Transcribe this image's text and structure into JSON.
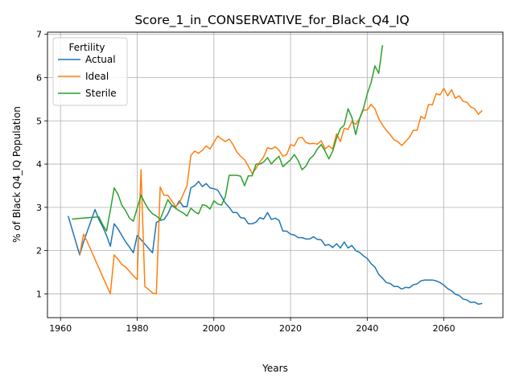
{
  "chart_data": {
    "type": "line",
    "title": "Score_1_in_CONSERVATIVE_for_Black_Q4_IQ",
    "xlabel": "Years",
    "ylabel": "% of Black Q4_IQ Population",
    "xlim": [
      1956.6,
      2075.4
    ],
    "ylim": [
      0.45,
      7.05
    ],
    "xticks": [
      1960,
      1980,
      2000,
      2020,
      2040,
      2060
    ],
    "yticks": [
      1,
      2,
      3,
      4,
      5,
      6,
      7
    ],
    "grid": true,
    "legend": {
      "title": "Fertility",
      "placement": "top-left"
    },
    "series": [
      {
        "name": "Actual",
        "color": "#1f77b4",
        "points": [
          [
            1962,
            2.8
          ],
          [
            1963,
            2.5
          ],
          [
            1964,
            2.2
          ],
          [
            1965,
            1.9
          ],
          [
            1966,
            2.2
          ],
          [
            1967,
            2.45
          ],
          [
            1968,
            2.7
          ],
          [
            1969,
            2.95
          ],
          [
            1970,
            2.72
          ],
          [
            1971,
            2.55
          ],
          [
            1972,
            2.35
          ],
          [
            1973,
            2.1
          ],
          [
            1974,
            2.62
          ],
          [
            1975,
            2.5
          ],
          [
            1976,
            2.35
          ],
          [
            1977,
            2.2
          ],
          [
            1978,
            2.08
          ],
          [
            1979,
            1.95
          ],
          [
            1980,
            2.35
          ],
          [
            1981,
            2.25
          ],
          [
            1982,
            2.15
          ],
          [
            1983,
            2.05
          ],
          [
            1984,
            1.95
          ],
          [
            1985,
            2.65
          ],
          [
            1986,
            2.7
          ],
          [
            1987,
            2.72
          ],
          [
            1988,
            2.85
          ],
          [
            1989,
            3.05
          ],
          [
            1990,
            3.0
          ],
          [
            1991,
            3.15
          ],
          [
            1992,
            3.02
          ],
          [
            1993,
            3.02
          ],
          [
            1994,
            3.45
          ],
          [
            1995,
            3.5
          ],
          [
            1996,
            3.6
          ],
          [
            1997,
            3.48
          ],
          [
            1998,
            3.55
          ],
          [
            1999,
            3.45
          ],
          [
            2000,
            3.43
          ],
          [
            2001,
            3.4
          ],
          [
            2002,
            3.25
          ],
          [
            2003,
            3.1
          ],
          [
            2004,
            3.0
          ],
          [
            2005,
            2.88
          ],
          [
            2006,
            2.88
          ],
          [
            2007,
            2.76
          ],
          [
            2008,
            2.75
          ],
          [
            2009,
            2.62
          ],
          [
            2010,
            2.62
          ],
          [
            2011,
            2.66
          ],
          [
            2012,
            2.76
          ],
          [
            2013,
            2.73
          ],
          [
            2014,
            2.88
          ],
          [
            2015,
            2.72
          ],
          [
            2016,
            2.75
          ],
          [
            2017,
            2.7
          ],
          [
            2018,
            2.45
          ],
          [
            2019,
            2.45
          ],
          [
            2020,
            2.38
          ],
          [
            2021,
            2.36
          ],
          [
            2022,
            2.3
          ],
          [
            2023,
            2.3
          ],
          [
            2024,
            2.27
          ],
          [
            2025,
            2.27
          ],
          [
            2026,
            2.32
          ],
          [
            2027,
            2.26
          ],
          [
            2028,
            2.25
          ],
          [
            2029,
            2.12
          ],
          [
            2030,
            2.14
          ],
          [
            2031,
            2.07
          ],
          [
            2032,
            2.16
          ],
          [
            2033,
            2.06
          ],
          [
            2034,
            2.2
          ],
          [
            2035,
            2.06
          ],
          [
            2036,
            2.12
          ],
          [
            2037,
            2.0
          ],
          [
            2038,
            1.96
          ],
          [
            2039,
            1.88
          ],
          [
            2040,
            1.82
          ],
          [
            2041,
            1.7
          ],
          [
            2042,
            1.62
          ],
          [
            2043,
            1.45
          ],
          [
            2044,
            1.36
          ],
          [
            2045,
            1.26
          ],
          [
            2046,
            1.24
          ],
          [
            2047,
            1.17
          ],
          [
            2048,
            1.17
          ],
          [
            2049,
            1.11
          ],
          [
            2050,
            1.15
          ],
          [
            2051,
            1.14
          ],
          [
            2052,
            1.21
          ],
          [
            2053,
            1.23
          ],
          [
            2054,
            1.3
          ],
          [
            2055,
            1.32
          ],
          [
            2056,
            1.32
          ],
          [
            2057,
            1.32
          ],
          [
            2058,
            1.3
          ],
          [
            2059,
            1.26
          ],
          [
            2060,
            1.2
          ],
          [
            2061,
            1.12
          ],
          [
            2062,
            1.07
          ],
          [
            2063,
            0.99
          ],
          [
            2064,
            0.96
          ],
          [
            2065,
            0.88
          ],
          [
            2066,
            0.86
          ],
          [
            2067,
            0.8
          ],
          [
            2068,
            0.81
          ],
          [
            2069,
            0.76
          ],
          [
            2070,
            0.78
          ]
        ]
      },
      {
        "name": "Ideal",
        "color": "#ff7f0e",
        "points": [
          [
            1965,
            1.9
          ],
          [
            1966,
            2.38
          ],
          [
            1967,
            2.2
          ],
          [
            1968,
            2.0
          ],
          [
            1969,
            1.8
          ],
          [
            1970,
            1.6
          ],
          [
            1971,
            1.4
          ],
          [
            1972,
            1.2
          ],
          [
            1973,
            1.0
          ],
          [
            1974,
            1.9
          ],
          [
            1975,
            1.8
          ],
          [
            1976,
            1.68
          ],
          [
            1977,
            1.62
          ],
          [
            1978,
            1.52
          ],
          [
            1979,
            1.42
          ],
          [
            1980,
            1.33
          ],
          [
            1981,
            3.87
          ],
          [
            1982,
            1.17
          ],
          [
            1983,
            1.1
          ],
          [
            1984,
            1.02
          ],
          [
            1985,
            1.0
          ],
          [
            1986,
            3.47
          ],
          [
            1987,
            3.28
          ],
          [
            1988,
            3.28
          ],
          [
            1989,
            3.15
          ],
          [
            1990,
            3.02
          ],
          [
            1991,
            3.1
          ],
          [
            1992,
            3.3
          ],
          [
            1993,
            3.5
          ],
          [
            1994,
            4.2
          ],
          [
            1995,
            4.3
          ],
          [
            1996,
            4.25
          ],
          [
            1997,
            4.32
          ],
          [
            1998,
            4.42
          ],
          [
            1999,
            4.35
          ],
          [
            2000,
            4.5
          ],
          [
            2001,
            4.65
          ],
          [
            2002,
            4.58
          ],
          [
            2003,
            4.52
          ],
          [
            2004,
            4.58
          ],
          [
            2005,
            4.45
          ],
          [
            2006,
            4.28
          ],
          [
            2007,
            4.18
          ],
          [
            2008,
            4.1
          ],
          [
            2009,
            3.95
          ],
          [
            2010,
            3.78
          ],
          [
            2011,
            3.9
          ],
          [
            2012,
            4.05
          ],
          [
            2013,
            4.17
          ],
          [
            2014,
            4.38
          ],
          [
            2015,
            4.35
          ],
          [
            2016,
            4.4
          ],
          [
            2017,
            4.32
          ],
          [
            2018,
            4.18
          ],
          [
            2019,
            4.22
          ],
          [
            2020,
            4.45
          ],
          [
            2021,
            4.42
          ],
          [
            2022,
            4.6
          ],
          [
            2023,
            4.62
          ],
          [
            2024,
            4.5
          ],
          [
            2025,
            4.47
          ],
          [
            2026,
            4.48
          ],
          [
            2027,
            4.46
          ],
          [
            2028,
            4.54
          ],
          [
            2029,
            4.35
          ],
          [
            2030,
            4.42
          ],
          [
            2031,
            4.35
          ],
          [
            2032,
            4.7
          ],
          [
            2033,
            4.52
          ],
          [
            2034,
            4.83
          ],
          [
            2035,
            4.8
          ],
          [
            2036,
            4.98
          ],
          [
            2037,
            4.92
          ],
          [
            2038,
            5.05
          ],
          [
            2039,
            5.25
          ],
          [
            2040,
            5.25
          ],
          [
            2041,
            5.38
          ],
          [
            2042,
            5.28
          ],
          [
            2043,
            5.05
          ],
          [
            2044,
            4.9
          ],
          [
            2045,
            4.78
          ],
          [
            2046,
            4.68
          ],
          [
            2047,
            4.56
          ],
          [
            2048,
            4.52
          ],
          [
            2049,
            4.43
          ],
          [
            2050,
            4.52
          ],
          [
            2051,
            4.62
          ],
          [
            2052,
            4.78
          ],
          [
            2053,
            4.78
          ],
          [
            2054,
            5.1
          ],
          [
            2055,
            5.05
          ],
          [
            2056,
            5.38
          ],
          [
            2057,
            5.37
          ],
          [
            2058,
            5.63
          ],
          [
            2059,
            5.6
          ],
          [
            2060,
            5.75
          ],
          [
            2061,
            5.58
          ],
          [
            2062,
            5.72
          ],
          [
            2063,
            5.52
          ],
          [
            2064,
            5.58
          ],
          [
            2065,
            5.45
          ],
          [
            2066,
            5.43
          ],
          [
            2067,
            5.32
          ],
          [
            2068,
            5.28
          ],
          [
            2069,
            5.15
          ],
          [
            2070,
            5.24
          ]
        ]
      },
      {
        "name": "Sterile",
        "color": "#2ca02c",
        "points": [
          [
            1963,
            2.73
          ],
          [
            1970,
            2.78
          ],
          [
            1971,
            2.6
          ],
          [
            1972,
            2.45
          ],
          [
            1973,
            2.93
          ],
          [
            1974,
            3.45
          ],
          [
            1975,
            3.3
          ],
          [
            1976,
            3.05
          ],
          [
            1977,
            2.92
          ],
          [
            1978,
            2.75
          ],
          [
            1979,
            2.68
          ],
          [
            1980,
            2.98
          ],
          [
            1981,
            3.28
          ],
          [
            1982,
            3.1
          ],
          [
            1983,
            2.95
          ],
          [
            1984,
            2.85
          ],
          [
            1985,
            2.8
          ],
          [
            1986,
            2.72
          ],
          [
            1987,
            2.95
          ],
          [
            1988,
            3.18
          ],
          [
            1989,
            3.05
          ],
          [
            1990,
            2.98
          ],
          [
            1991,
            2.92
          ],
          [
            1992,
            2.87
          ],
          [
            1993,
            2.8
          ],
          [
            1994,
            2.98
          ],
          [
            1995,
            2.9
          ],
          [
            1996,
            2.85
          ],
          [
            1997,
            3.06
          ],
          [
            1998,
            3.04
          ],
          [
            1999,
            2.96
          ],
          [
            2000,
            3.15
          ],
          [
            2001,
            3.08
          ],
          [
            2002,
            3.05
          ],
          [
            2003,
            3.25
          ],
          [
            2004,
            3.74
          ],
          [
            2005,
            3.74
          ],
          [
            2006,
            3.74
          ],
          [
            2007,
            3.72
          ],
          [
            2008,
            3.5
          ],
          [
            2009,
            3.73
          ],
          [
            2010,
            3.73
          ],
          [
            2011,
            4.0
          ],
          [
            2012,
            4.0
          ],
          [
            2013,
            4.05
          ],
          [
            2014,
            4.15
          ],
          [
            2015,
            4.0
          ],
          [
            2016,
            4.1
          ],
          [
            2017,
            4.18
          ],
          [
            2018,
            3.94
          ],
          [
            2019,
            4.02
          ],
          [
            2020,
            4.1
          ],
          [
            2021,
            4.22
          ],
          [
            2022,
            4.08
          ],
          [
            2023,
            3.87
          ],
          [
            2024,
            3.95
          ],
          [
            2025,
            4.12
          ],
          [
            2026,
            4.2
          ],
          [
            2027,
            4.35
          ],
          [
            2028,
            4.45
          ],
          [
            2029,
            4.3
          ],
          [
            2030,
            4.12
          ],
          [
            2031,
            4.3
          ],
          [
            2032,
            4.6
          ],
          [
            2033,
            4.82
          ],
          [
            2034,
            4.9
          ],
          [
            2035,
            5.28
          ],
          [
            2036,
            5.08
          ],
          [
            2037,
            4.68
          ],
          [
            2038,
            5.05
          ],
          [
            2039,
            5.28
          ],
          [
            2040,
            5.62
          ],
          [
            2041,
            5.88
          ],
          [
            2042,
            6.27
          ],
          [
            2043,
            6.1
          ],
          [
            2044,
            6.75
          ]
        ]
      }
    ]
  }
}
